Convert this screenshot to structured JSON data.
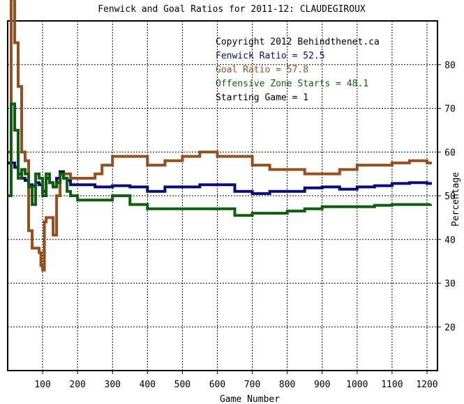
{
  "chart_data": {
    "type": "line",
    "title": "Fenwick and Goal Ratios for 2011-12: CLAUDEGIROUX",
    "xlabel": "Game Number",
    "ylabel": "Percentage",
    "xlim": [
      0,
      1230
    ],
    "ylim": [
      10,
      90
    ],
    "x_ticks": [
      100,
      200,
      300,
      400,
      500,
      600,
      700,
      800,
      900,
      1000,
      1100,
      1200
    ],
    "x_tick_labels": [
      "100",
      "200",
      "300",
      "400",
      "500",
      "600",
      "700",
      "800",
      "900",
      "1000",
      "1100",
      "1200"
    ],
    "y_ticks": [
      20,
      30,
      40,
      50,
      60,
      70,
      80
    ],
    "y_tick_labels": [
      "20",
      "30",
      "40",
      "50",
      "60",
      "70",
      "80"
    ],
    "y_axis_side": "right",
    "grid": true,
    "legend_lines": [
      {
        "text": "Copyright 2012 Behindthenet.ca",
        "color": "#000000"
      },
      {
        "text": "Fenwick Ratio = 52.5",
        "color": "#0a0a78"
      },
      {
        "text": "Goal Ratio = 57.8",
        "color": "#96501e"
      },
      {
        "text": "Offensive Zone Starts = 48.1",
        "color": "#0f5f0f"
      },
      {
        "text": "Starting Game = 1",
        "color": "#000000"
      }
    ],
    "legend_position": "top-right",
    "series": [
      {
        "name": "Fenwick Ratio",
        "color": "#0a0a78",
        "x": [
          1,
          10,
          20,
          30,
          40,
          50,
          60,
          70,
          80,
          90,
          100,
          110,
          120,
          130,
          140,
          150,
          160,
          170,
          180,
          200,
          250,
          300,
          350,
          380,
          400,
          450,
          500,
          550,
          600,
          650,
          700,
          750,
          800,
          850,
          900,
          950,
          1000,
          1050,
          1100,
          1150,
          1200,
          1210
        ],
        "y": [
          57.5,
          57.5,
          56.5,
          55,
          54,
          53.5,
          52.5,
          52.2,
          53,
          52.5,
          51,
          54,
          53,
          52,
          54,
          55.5,
          54,
          53.5,
          52.5,
          52.5,
          52,
          52.3,
          52,
          52,
          51,
          52,
          52,
          52.5,
          52.5,
          51,
          50.5,
          51,
          51,
          51.8,
          52,
          51.5,
          52,
          52.3,
          52.8,
          53,
          52.8,
          52.5
        ]
      },
      {
        "name": "Goal Ratio",
        "color": "#96501e",
        "x": [
          1,
          10,
          20,
          30,
          40,
          50,
          60,
          70,
          80,
          90,
          95,
          100,
          105,
          110,
          120,
          130,
          140,
          150,
          170,
          180,
          200,
          250,
          270,
          300,
          350,
          400,
          450,
          500,
          550,
          600,
          650,
          700,
          750,
          800,
          850,
          900,
          950,
          1000,
          1050,
          1100,
          1150,
          1200,
          1210
        ],
        "y": [
          60,
          95,
          85,
          75,
          60,
          58,
          42,
          38,
          38,
          37,
          34,
          33,
          44,
          45,
          45,
          41,
          50,
          55,
          55,
          54,
          54,
          55,
          57,
          59,
          59,
          57,
          58,
          59,
          60,
          59,
          59,
          57,
          56,
          56,
          55,
          55,
          56,
          57,
          57,
          57.5,
          58,
          57.5,
          57.8
        ]
      },
      {
        "name": "Offensive Zone Starts",
        "color": "#0f5f0f",
        "x": [
          1,
          10,
          20,
          30,
          40,
          50,
          60,
          70,
          80,
          90,
          100,
          110,
          120,
          130,
          140,
          150,
          160,
          170,
          180,
          200,
          250,
          300,
          350,
          400,
          450,
          500,
          550,
          600,
          650,
          700,
          750,
          800,
          850,
          900,
          950,
          1000,
          1050,
          1100,
          1150,
          1200,
          1210
        ],
        "y": [
          50,
          71,
          65,
          54,
          56,
          55,
          52,
          48,
          55,
          54,
          50,
          55,
          53,
          52,
          53,
          55,
          54,
          51,
          50,
          49,
          49,
          50,
          48,
          47,
          47,
          47,
          47,
          47,
          45.5,
          46,
          46,
          46.5,
          47,
          47.5,
          47.5,
          47.5,
          47.8,
          48,
          48,
          48,
          48.1
        ]
      }
    ]
  }
}
